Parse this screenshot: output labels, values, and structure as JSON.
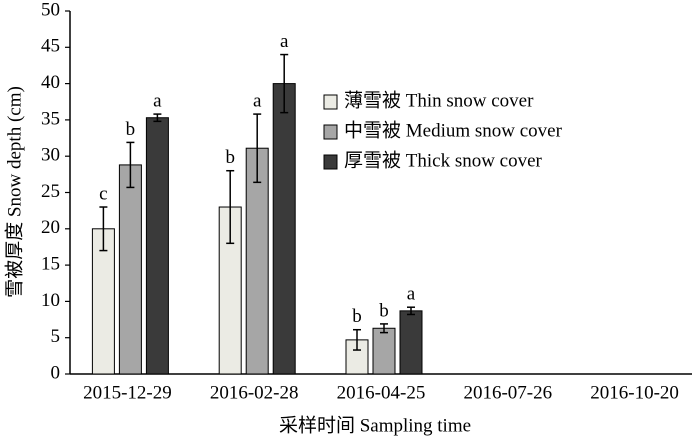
{
  "chart_data": {
    "type": "bar",
    "x_label": "采样时间 Sampling time",
    "y_label": "雪被厚度 Snow depth (cm)",
    "categories": [
      "2015-12-29",
      "2016-02-28",
      "2016-04-25",
      "2016-07-26",
      "2016-10-20"
    ],
    "series": [
      {
        "name": "薄雪被 Thin snow cover",
        "color": "#ebebe4",
        "values": [
          20,
          23,
          4.7,
          null,
          null
        ],
        "errors": [
          3,
          5,
          1.4,
          null,
          null
        ],
        "letters": [
          "c",
          "b",
          "b",
          null,
          null
        ]
      },
      {
        "name": "中雪被 Medium snow cover",
        "color": "#a6a6a6",
        "values": [
          28.8,
          31.1,
          6.3,
          null,
          null
        ],
        "errors": [
          3.1,
          4.7,
          0.6,
          null,
          null
        ],
        "letters": [
          "b",
          "a",
          "b",
          null,
          null
        ]
      },
      {
        "name": "厚雪被 Thick snow cover",
        "color": "#3a3a3a",
        "values": [
          35.3,
          40,
          8.7,
          null,
          null
        ],
        "errors": [
          0.5,
          4,
          0.5,
          null,
          null
        ],
        "letters": [
          "a",
          "a",
          "a",
          null,
          null
        ]
      }
    ],
    "ylim": [
      0,
      50
    ],
    "yticks": [
      0,
      5,
      10,
      15,
      20,
      25,
      30,
      35,
      40,
      45,
      50
    ],
    "grid": false
  }
}
